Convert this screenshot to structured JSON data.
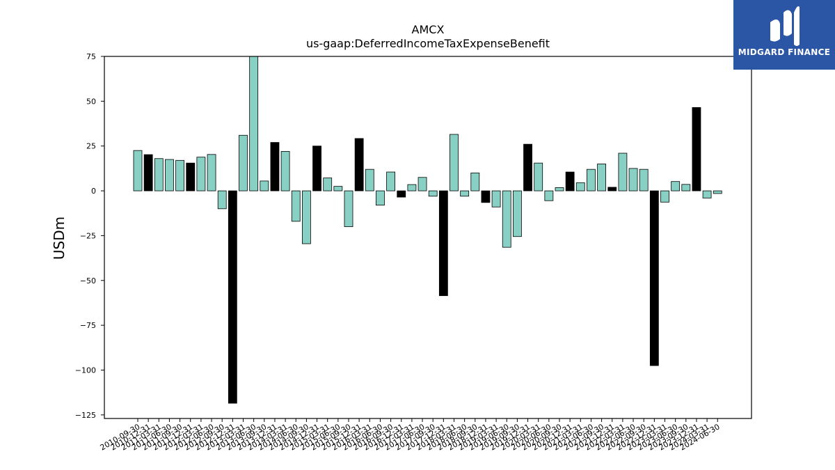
{
  "brand": {
    "name": "MIDGARD FINANCE",
    "color": "#2b56a6"
  },
  "chart_data": {
    "type": "bar",
    "title": "AMCX",
    "subtitle": "us-gaap:DeferredIncomeTaxExpenseBenefit",
    "xlabel": "",
    "ylabel": "USDm",
    "ylim": [
      -127,
      75
    ],
    "yticks": [
      75,
      50,
      25,
      0,
      -25,
      -50,
      -75,
      -100,
      -125
    ],
    "grid": false,
    "colors": {
      "quarter": "#88cfc4",
      "annual": "#000000"
    },
    "categories": [
      "2010-09-30",
      "2010-12-31",
      "2011-03-31",
      "2011-06-30",
      "2011-09-30",
      "2011-12-31",
      "2012-03-31",
      "2012-06-30",
      "2012-09-30",
      "2012-12-31",
      "2013-03-31",
      "2013-06-30",
      "2013-09-30",
      "2013-12-31",
      "2014-03-31",
      "2014-06-30",
      "2014-09-30",
      "2014-12-31",
      "2015-03-31",
      "2015-06-30",
      "2015-09-30",
      "2015-12-31",
      "2016-03-31",
      "2016-06-30",
      "2016-09-30",
      "2016-12-31",
      "2017-03-31",
      "2017-06-30",
      "2017-09-30",
      "2017-12-31",
      "2018-03-31",
      "2018-06-30",
      "2018-09-30",
      "2018-12-31",
      "2019-03-31",
      "2019-06-30",
      "2019-09-30",
      "2019-12-31",
      "2020-03-31",
      "2020-06-30",
      "2020-09-30",
      "2020-12-31",
      "2021-03-31",
      "2021-06-30",
      "2021-09-30",
      "2021-12-31",
      "2022-03-31",
      "2022-06-30",
      "2022-09-30",
      "2022-12-31",
      "2023-03-31",
      "2023-06-30",
      "2023-09-30",
      "2023-12-31",
      "2024-03-31",
      "2024-06-30"
    ],
    "values": [
      22.5,
      20.2,
      18,
      17.5,
      17,
      15.5,
      18.8,
      20.3,
      -10,
      -118.5,
      31,
      76,
      5.5,
      27,
      22,
      -17,
      -29.5,
      25,
      7.2,
      2.5,
      -20,
      29.2,
      12,
      -8,
      10.5,
      -3.5,
      3.5,
      7.5,
      -3,
      -58.5,
      31.5,
      -3,
      10,
      -6.5,
      -9,
      -31.5,
      -25.5,
      26,
      15.5,
      -5.5,
      1.8,
      10.5,
      4.5,
      12,
      15,
      2,
      21,
      12.5,
      12,
      -97.5,
      -6.3,
      5.2,
      3.6,
      46.5,
      -4,
      -1.5
    ],
    "annual": [
      false,
      true,
      false,
      false,
      false,
      true,
      false,
      false,
      false,
      true,
      false,
      false,
      false,
      true,
      false,
      false,
      false,
      true,
      false,
      false,
      false,
      true,
      false,
      false,
      false,
      true,
      false,
      false,
      false,
      true,
      false,
      false,
      false,
      true,
      false,
      false,
      false,
      true,
      false,
      false,
      false,
      true,
      false,
      false,
      false,
      true,
      false,
      false,
      false,
      true,
      false,
      false,
      false,
      true,
      false,
      false
    ]
  }
}
